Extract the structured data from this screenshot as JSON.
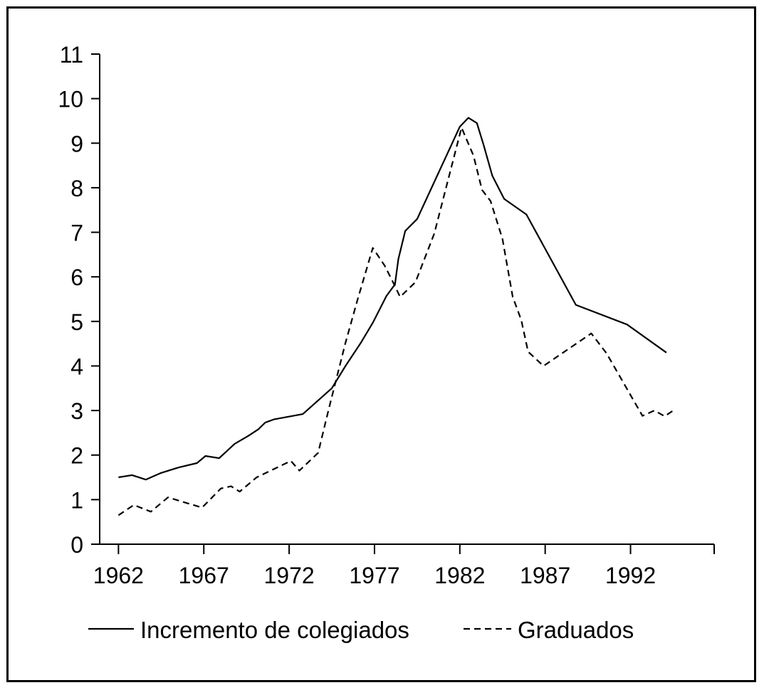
{
  "chart_data": {
    "type": "line",
    "title": "",
    "xlabel": "",
    "ylabel": "",
    "xlim": [
      1960.9,
      1996.9
    ],
    "ylim": [
      0,
      11
    ],
    "x_ticks": [
      1962,
      1967,
      1972,
      1977,
      1982,
      1987,
      1992
    ],
    "y_ticks": [
      0,
      1,
      2,
      3,
      4,
      5,
      6,
      7,
      8,
      9,
      10,
      11
    ],
    "grid": false,
    "legend": "bottom",
    "colors": {
      "line": "#000000",
      "background": "#ffffff"
    },
    "series": [
      {
        "name": "Incremento de colegiados",
        "style": "solid",
        "points": [
          [
            1962,
            1.5
          ],
          [
            1962.8,
            1.55
          ],
          [
            1963.6,
            1.45
          ],
          [
            1964.5,
            1.6
          ],
          [
            1965.5,
            1.72
          ],
          [
            1966.6,
            1.82
          ],
          [
            1967.1,
            1.98
          ],
          [
            1967.9,
            1.93
          ],
          [
            1968.8,
            2.25
          ],
          [
            1969.6,
            2.43
          ],
          [
            1970.2,
            2.58
          ],
          [
            1970.6,
            2.73
          ],
          [
            1971.1,
            2.8
          ],
          [
            1972.8,
            2.92
          ],
          [
            1974.5,
            3.5
          ],
          [
            1975.3,
            4.0
          ],
          [
            1976.2,
            4.52
          ],
          [
            1976.9,
            4.97
          ],
          [
            1977.7,
            5.57
          ],
          [
            1978.2,
            5.83
          ],
          [
            1978.4,
            6.4
          ],
          [
            1978.8,
            7.03
          ],
          [
            1979.5,
            7.3
          ],
          [
            1982.0,
            9.37
          ],
          [
            1982.5,
            9.57
          ],
          [
            1983.0,
            9.45
          ],
          [
            1983.4,
            8.95
          ],
          [
            1983.9,
            8.27
          ],
          [
            1984.6,
            7.75
          ],
          [
            1985.9,
            7.4
          ],
          [
            1988.8,
            5.37
          ],
          [
            1991.8,
            4.93
          ],
          [
            1994.1,
            4.3
          ]
        ]
      },
      {
        "name": "Graduados",
        "style": "dashed",
        "points": [
          [
            1962,
            0.65
          ],
          [
            1962.9,
            0.88
          ],
          [
            1963.9,
            0.73
          ],
          [
            1964.9,
            1.05
          ],
          [
            1966.9,
            0.82
          ],
          [
            1968.0,
            1.25
          ],
          [
            1968.6,
            1.3
          ],
          [
            1969.1,
            1.18
          ],
          [
            1970.1,
            1.5
          ],
          [
            1972.1,
            1.87
          ],
          [
            1972.6,
            1.65
          ],
          [
            1973.7,
            2.05
          ],
          [
            1974.3,
            3.0
          ],
          [
            1975.3,
            4.52
          ],
          [
            1976.0,
            5.48
          ],
          [
            1976.9,
            6.65
          ],
          [
            1977.6,
            6.25
          ],
          [
            1978.1,
            5.87
          ],
          [
            1978.5,
            5.55
          ],
          [
            1979.4,
            5.88
          ],
          [
            1980.5,
            6.97
          ],
          [
            1982.1,
            9.35
          ],
          [
            1982.8,
            8.72
          ],
          [
            1983.3,
            7.95
          ],
          [
            1983.8,
            7.7
          ],
          [
            1984.5,
            6.85
          ],
          [
            1985.1,
            5.55
          ],
          [
            1985.6,
            5.03
          ],
          [
            1986.0,
            4.32
          ],
          [
            1986.9,
            4.0
          ],
          [
            1989.7,
            4.73
          ],
          [
            1990.6,
            4.28
          ],
          [
            1992.7,
            2.88
          ],
          [
            1993.4,
            3.0
          ],
          [
            1994.0,
            2.87
          ],
          [
            1994.5,
            3.0
          ]
        ]
      }
    ]
  }
}
